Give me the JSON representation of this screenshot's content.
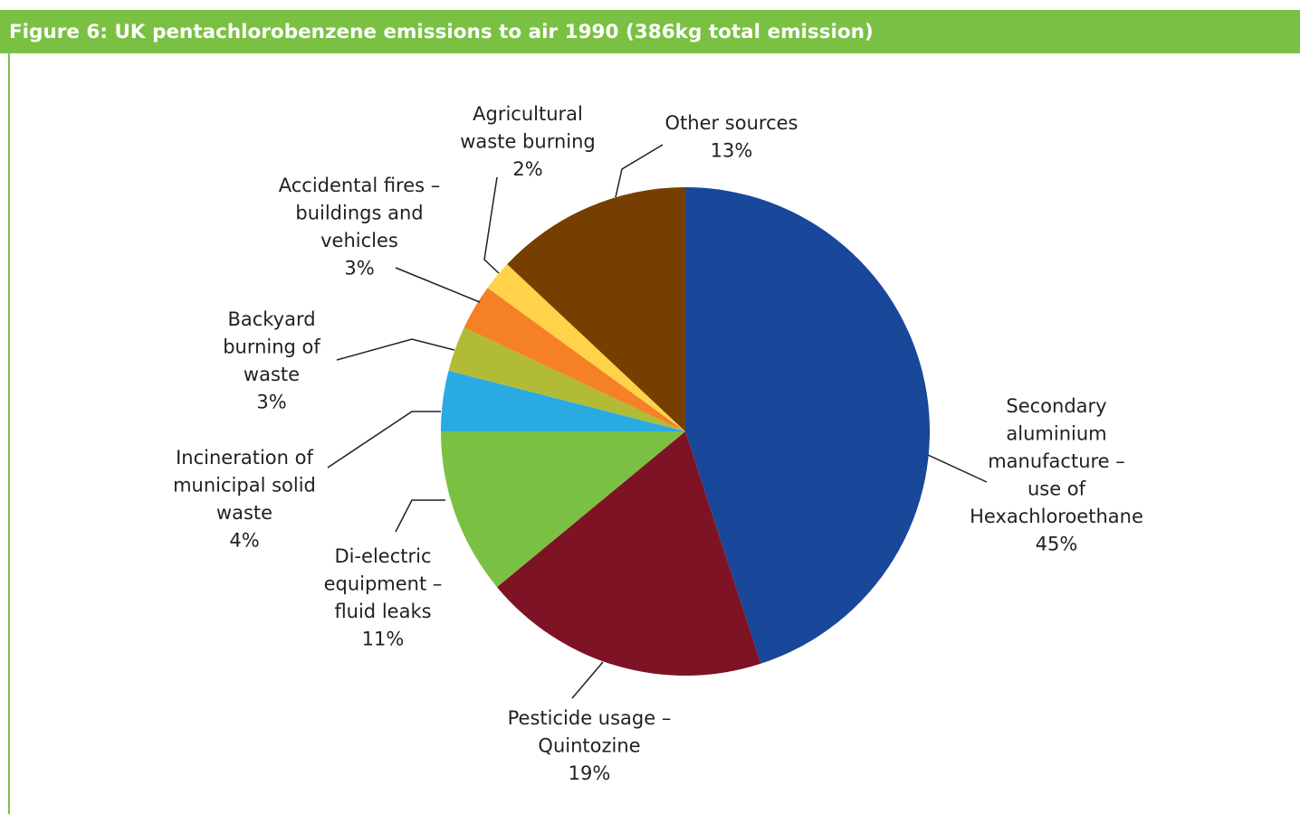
{
  "figure": {
    "title": "Figure 6: UK pentachlorobenzene emissions to air 1990 (386kg total emission)"
  },
  "colors": {
    "header_bar": "#7ac143",
    "header_text": "#ffffff",
    "label_text": "#231f20",
    "leader_line": "#231f20"
  },
  "chart_data": {
    "type": "pie",
    "title": "Figure 6: UK pentachlorobenzene emissions to air 1990 (386kg total emission)",
    "start_angle_deg": 0,
    "direction": "clockwise",
    "slices": [
      {
        "name": "Secondary aluminium manufacture – use of Hexachloroethane",
        "label_lines": [
          "Secondary",
          "aluminium",
          "manufacture –",
          "use of",
          "Hexachloroethane"
        ],
        "percent_label": "45%",
        "value": 45,
        "color": "#19479a"
      },
      {
        "name": "Pesticide usage – Quintozine",
        "label_lines": [
          "Pesticide usage –",
          "Quintozine"
        ],
        "percent_label": "19%",
        "value": 19,
        "color": "#7f1326"
      },
      {
        "name": "Di-electric equipment – fluid leaks",
        "label_lines": [
          "Di-electric",
          "equipment –",
          "fluid leaks"
        ],
        "percent_label": "11%",
        "value": 11,
        "color": "#7ac143"
      },
      {
        "name": "Incineration of municipal solid waste",
        "label_lines": [
          "Incineration of",
          "municipal solid",
          "waste"
        ],
        "percent_label": "4%",
        "value": 4,
        "color": "#29abe2"
      },
      {
        "name": "Backyard burning of waste",
        "label_lines": [
          "Backyard",
          "burning of",
          "waste"
        ],
        "percent_label": "3%",
        "value": 3,
        "color": "#b2bb35"
      },
      {
        "name": "Accidental fires – buildings and vehicles",
        "label_lines": [
          "Accidental fires –",
          "buildings and",
          "vehicles"
        ],
        "percent_label": "3%",
        "value": 3,
        "color": "#f58025"
      },
      {
        "name": "Agricultural waste burning",
        "label_lines": [
          "Agricultural",
          "waste burning"
        ],
        "percent_label": "2%",
        "value": 2,
        "color": "#ffd24a"
      },
      {
        "name": "Other sources",
        "label_lines": [
          "Other sources"
        ],
        "percent_label": "13%",
        "value": 13,
        "color": "#763f00"
      }
    ]
  }
}
